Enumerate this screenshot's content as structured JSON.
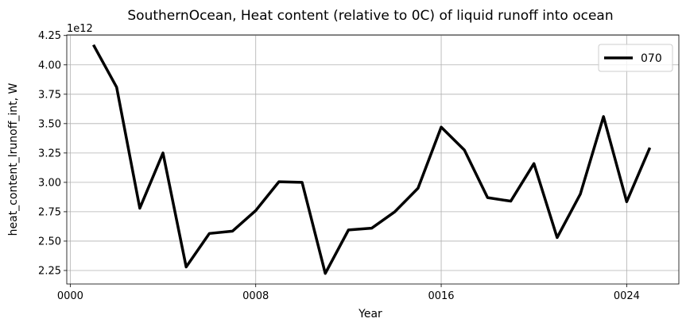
{
  "chart_data": {
    "type": "line",
    "title": "SouthernOcean, Heat content (relative to 0C) of liquid runoff into ocean",
    "xlabel": "Year",
    "ylabel": "heat_content_lrunoff_int, W",
    "y_offset_label": "1e12",
    "y_scale": 1000000000000.0,
    "xlim": [
      -0.15,
      26.25
    ],
    "ylim": [
      2.135,
      4.255
    ],
    "grid": true,
    "legend_position": "top-right",
    "x_ticks": [
      {
        "value": 0,
        "label": "0000"
      },
      {
        "value": 8,
        "label": "0008"
      },
      {
        "value": 16,
        "label": "0016"
      },
      {
        "value": 24,
        "label": "0024"
      }
    ],
    "y_ticks": [
      {
        "value": 2.25,
        "label": "2.25"
      },
      {
        "value": 2.5,
        "label": "2.50"
      },
      {
        "value": 2.75,
        "label": "2.75"
      },
      {
        "value": 3.0,
        "label": "3.00"
      },
      {
        "value": 3.25,
        "label": "3.25"
      },
      {
        "value": 3.5,
        "label": "3.50"
      },
      {
        "value": 3.75,
        "label": "3.75"
      },
      {
        "value": 4.0,
        "label": "4.00"
      },
      {
        "value": 4.25,
        "label": "4.25"
      }
    ],
    "series": [
      {
        "name": "070",
        "color": "#000000",
        "x": [
          1,
          2,
          3,
          4,
          5,
          6,
          7,
          8,
          9,
          10,
          11,
          12,
          13,
          14,
          15,
          16,
          17,
          18,
          19,
          20,
          21,
          22,
          23,
          24,
          25
        ],
        "values": [
          4.17,
          3.81,
          2.78,
          3.25,
          2.28,
          2.565,
          2.585,
          2.76,
          3.005,
          3.0,
          2.225,
          2.595,
          2.61,
          2.75,
          2.95,
          3.47,
          3.275,
          2.87,
          2.84,
          3.16,
          2.53,
          2.9,
          3.56,
          2.835,
          3.295
        ]
      }
    ]
  }
}
